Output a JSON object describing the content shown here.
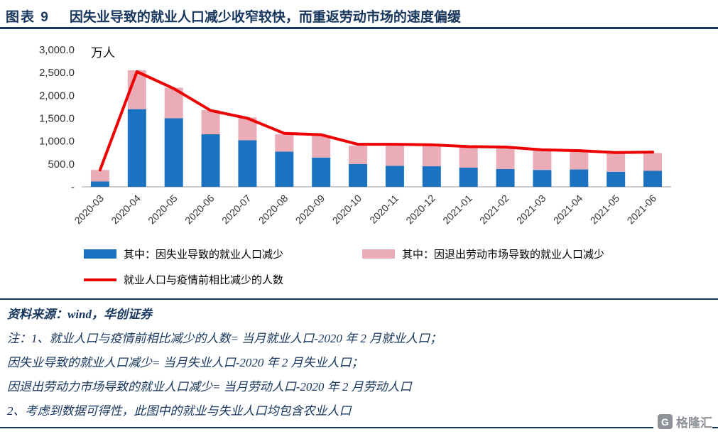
{
  "title": {
    "prefix": "图表  9",
    "text": "因失业导致的就业人口减少收窄较快，而重返劳动市场的速度偏缓"
  },
  "chart_data": {
    "type": "bar",
    "stacked": true,
    "unit_label": "万人",
    "grid": false,
    "legend_position": "bottom",
    "ylim": [
      0,
      3000
    ],
    "ytick_labels": [
      "3,000.0",
      "2,500.0",
      "2,000.0",
      "1,500.0",
      "1,000.0",
      "500.0",
      "-"
    ],
    "categories": [
      "2020-03",
      "2020-04",
      "2020-05",
      "2020-06",
      "2020-07",
      "2020-08",
      "2020-09",
      "2020-10",
      "2020-11",
      "2020-12",
      "2021-01",
      "2021-02",
      "2021-03",
      "2021-04",
      "2021-05",
      "2021-06"
    ],
    "series": [
      {
        "name": "其中：因失业导致的就业人口减少",
        "type": "bar",
        "color": "#1B72C0",
        "values": [
          120,
          1700,
          1500,
          1150,
          1020,
          770,
          640,
          500,
          460,
          450,
          420,
          390,
          370,
          380,
          330,
          350
        ]
      },
      {
        "name": "其中：因退出劳动市场导致的就业人口减少",
        "type": "bar",
        "color": "#EAADB8",
        "values": [
          250,
          850,
          670,
          530,
          500,
          380,
          490,
          400,
          440,
          460,
          450,
          470,
          430,
          410,
          400,
          390
        ]
      },
      {
        "name": "就业人口与疫情前相比减少的人数",
        "type": "line",
        "color": "#ED0000",
        "values": [
          370,
          2520,
          2150,
          1670,
          1500,
          1170,
          1140,
          930,
          930,
          920,
          880,
          870,
          810,
          790,
          750,
          760
        ]
      }
    ]
  },
  "footer": {
    "source": "资料来源：wind，华创证券",
    "notes": [
      "注：1、就业人口与疫情前相比减少的人数= 当月就业人口-2020 年 2 月就业人口；",
      "因失业导致的就业人口减少= 当月失业人口-2020 年 2 月失业人口；",
      "因退出劳动力市场导致的就业人口减少= 当月劳动人口-2020 年 2 月劳动人口",
      "2、考虑到数据可得性，此图中的就业与失业人口均包含农业人口"
    ],
    "logo_text": "格隆汇",
    "logo_letter": "G"
  }
}
